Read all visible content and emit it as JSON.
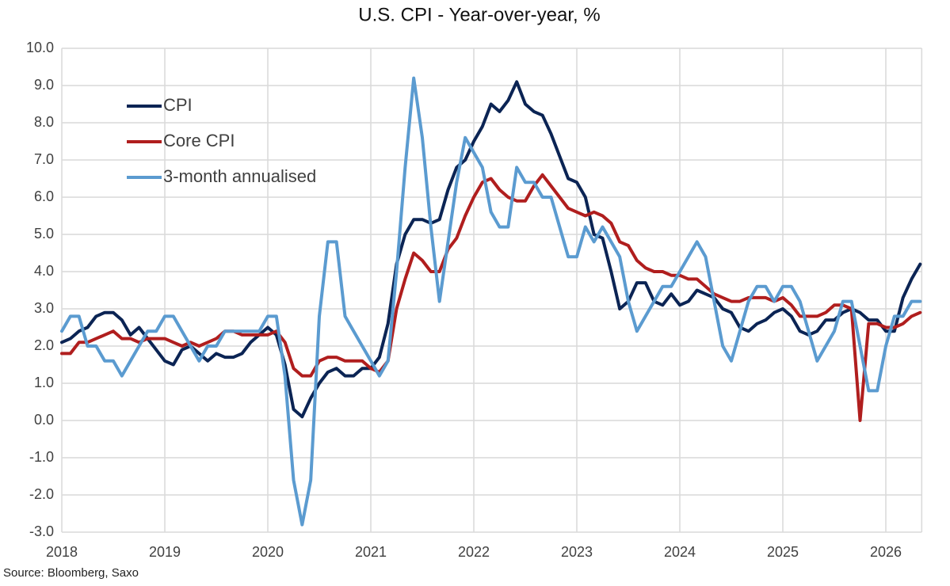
{
  "chart_data": {
    "type": "line",
    "title": "U.S. CPI - Year-over-year, %",
    "source": "Source: Bloomberg, Saxo",
    "categories": [
      "2018",
      null,
      null,
      null,
      null,
      null,
      null,
      null,
      null,
      null,
      null,
      null,
      "2019",
      null,
      null,
      null,
      null,
      null,
      null,
      null,
      null,
      null,
      null,
      null,
      "2020",
      null,
      null,
      null,
      null,
      null,
      null,
      null,
      null,
      null,
      null,
      null,
      "2021",
      null,
      null,
      null,
      null,
      null,
      null,
      null,
      null,
      null,
      null,
      null,
      "2022",
      null,
      null,
      null,
      null,
      null,
      null,
      null,
      null,
      null,
      null,
      null,
      "2023",
      null,
      null,
      null,
      null,
      null,
      null,
      null,
      null,
      null,
      null,
      null,
      "2024",
      null,
      null,
      null,
      null,
      null,
      null,
      null,
      null,
      null,
      null,
      null,
      "2025",
      null,
      null,
      null,
      null,
      null,
      null,
      null,
      null,
      null,
      null,
      null,
      "2026",
      null,
      null,
      null,
      null
    ],
    "series": [
      {
        "name": "CPI",
        "color": "#0b2454",
        "values": [
          2.1,
          2.2,
          2.4,
          2.5,
          2.8,
          2.9,
          2.9,
          2.7,
          2.3,
          2.5,
          2.2,
          1.9,
          1.6,
          1.5,
          1.9,
          2.0,
          1.8,
          1.6,
          1.8,
          1.7,
          1.7,
          1.8,
          2.1,
          2.3,
          2.5,
          2.3,
          1.5,
          0.3,
          0.1,
          0.6,
          1.0,
          1.3,
          1.4,
          1.2,
          1.2,
          1.4,
          1.4,
          1.7,
          2.6,
          4.2,
          5.0,
          5.4,
          5.4,
          5.3,
          5.4,
          6.2,
          6.8,
          7.0,
          7.5,
          7.9,
          8.5,
          8.3,
          8.6,
          9.1,
          8.5,
          8.3,
          8.2,
          7.7,
          7.1,
          6.5,
          6.4,
          6.0,
          5.0,
          4.9,
          4.0,
          3.0,
          3.2,
          3.7,
          3.7,
          3.2,
          3.1,
          3.4,
          3.1,
          3.2,
          3.5,
          3.4,
          3.3,
          3.0,
          2.9,
          2.5,
          2.4,
          2.6,
          2.7,
          2.9,
          3.0,
          2.8,
          2.4,
          2.3,
          2.4,
          2.7,
          2.7,
          2.9,
          3.0,
          2.9,
          2.7,
          2.7,
          2.4,
          2.4,
          3.3,
          3.8,
          4.2
        ]
      },
      {
        "name": "Core CPI",
        "color": "#b01e1e",
        "values": [
          1.8,
          1.8,
          2.1,
          2.1,
          2.2,
          2.3,
          2.4,
          2.2,
          2.2,
          2.1,
          2.2,
          2.2,
          2.2,
          2.1,
          2.0,
          2.1,
          2.0,
          2.1,
          2.2,
          2.4,
          2.4,
          2.3,
          2.3,
          2.3,
          2.3,
          2.4,
          2.1,
          1.4,
          1.2,
          1.2,
          1.6,
          1.7,
          1.7,
          1.6,
          1.6,
          1.6,
          1.4,
          1.3,
          1.6,
          3.0,
          3.8,
          4.5,
          4.3,
          4.0,
          4.0,
          4.6,
          4.9,
          5.5,
          6.0,
          6.4,
          6.5,
          6.2,
          6.0,
          5.9,
          5.9,
          6.3,
          6.6,
          6.3,
          6.0,
          5.7,
          5.6,
          5.5,
          5.6,
          5.5,
          5.3,
          4.8,
          4.7,
          4.3,
          4.1,
          4.0,
          4.0,
          3.9,
          3.9,
          3.8,
          3.8,
          3.6,
          3.4,
          3.3,
          3.2,
          3.2,
          3.3,
          3.3,
          3.3,
          3.2,
          3.3,
          3.1,
          2.8,
          2.8,
          2.8,
          2.9,
          3.1,
          3.1,
          3.0,
          0.0,
          2.6,
          2.6,
          2.5,
          2.5,
          2.6,
          2.8,
          2.9
        ]
      },
      {
        "name": "3-month annualised",
        "color": "#5b9bd0",
        "values": [
          2.4,
          2.8,
          2.8,
          2.0,
          2.0,
          1.6,
          1.6,
          1.2,
          1.6,
          2.0,
          2.4,
          2.4,
          2.8,
          2.8,
          2.4,
          2.0,
          1.6,
          2.0,
          2.0,
          2.4,
          2.4,
          2.4,
          2.4,
          2.4,
          2.8,
          2.8,
          1.2,
          -1.6,
          -2.8,
          -1.6,
          2.8,
          4.8,
          4.8,
          2.8,
          2.4,
          2.0,
          1.6,
          1.2,
          1.6,
          4.0,
          6.8,
          9.2,
          7.6,
          5.2,
          3.2,
          4.8,
          6.4,
          7.6,
          7.2,
          6.8,
          5.6,
          5.2,
          5.2,
          6.8,
          6.4,
          6.4,
          6.0,
          6.0,
          5.2,
          4.4,
          4.4,
          5.2,
          4.8,
          5.2,
          4.8,
          4.4,
          3.2,
          2.4,
          2.8,
          3.2,
          3.6,
          3.6,
          4.0,
          4.4,
          4.8,
          4.4,
          3.2,
          2.0,
          1.6,
          2.4,
          3.2,
          3.6,
          3.6,
          3.2,
          3.6,
          3.6,
          3.2,
          2.4,
          1.6,
          2.0,
          2.4,
          3.2,
          3.2,
          2.0,
          0.8,
          0.8,
          2.0,
          2.8,
          2.8,
          3.2,
          3.2
        ]
      }
    ],
    "ylim": [
      -3,
      10
    ],
    "yticks": [
      {
        "value": -3,
        "label": "-3.0"
      },
      {
        "value": -2,
        "label": "-2.0"
      },
      {
        "value": -1,
        "label": "-1.0"
      },
      {
        "value": 0,
        "label": "0.0"
      },
      {
        "value": 1,
        "label": "1.0"
      },
      {
        "value": 2,
        "label": "2.0"
      },
      {
        "value": 3,
        "label": "3.0"
      },
      {
        "value": 4,
        "label": "4.0"
      },
      {
        "value": 5,
        "label": "5.0"
      },
      {
        "value": 6,
        "label": "6.0"
      },
      {
        "value": 7,
        "label": "7.0"
      },
      {
        "value": 8,
        "label": "8.0"
      },
      {
        "value": 9,
        "label": "9.0"
      },
      {
        "value": 10,
        "label": "10.0"
      }
    ],
    "grid": true,
    "legend": "upper left"
  }
}
